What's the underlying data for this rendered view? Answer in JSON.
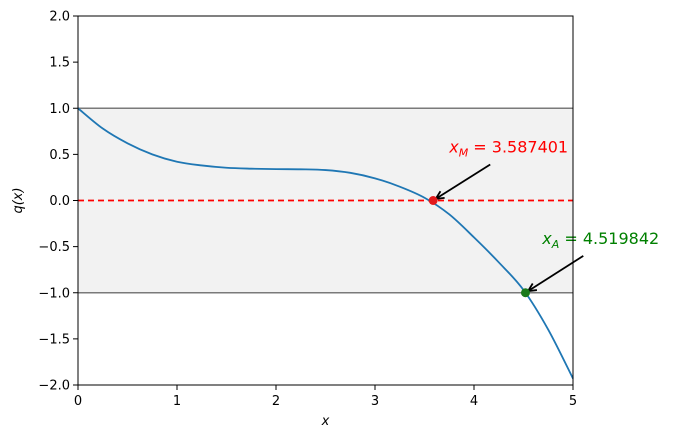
{
  "chart_data": {
    "type": "line",
    "xlabel": "x",
    "ylabel": "q(x)",
    "xlim": [
      0,
      5
    ],
    "ylim": [
      -2,
      2
    ],
    "x_ticks": [
      "0",
      "1",
      "2",
      "3",
      "4",
      "5"
    ],
    "y_ticks": [
      "2.0",
      "1.5",
      "1.0",
      "0.5",
      "0.0",
      "−0.5",
      "−1.0",
      "−1.5",
      "−2.0"
    ],
    "grid": false,
    "series": [
      {
        "color": "#1f77b4",
        "x": [
          0,
          0.25,
          0.5,
          0.75,
          1.0,
          1.25,
          1.5,
          1.75,
          2.0,
          2.25,
          2.5,
          2.75,
          3.0,
          3.25,
          3.5,
          3.75,
          4.0,
          4.25,
          4.5,
          4.75,
          5.0
        ],
        "y": [
          1.0,
          0.78,
          0.62,
          0.5,
          0.42,
          0.38,
          0.355,
          0.345,
          0.34,
          0.338,
          0.33,
          0.3,
          0.24,
          0.15,
          0.03,
          -0.15,
          -0.4,
          -0.67,
          -0.97,
          -1.4,
          -1.93
        ]
      }
    ],
    "band": {
      "y_from": -1.0,
      "y_to": 1.0,
      "color": "#f2f2f2",
      "edge_color": "#7a7a7a"
    },
    "hlines": [
      {
        "y": 0.0,
        "color": "#ff0000",
        "style": "dashed"
      }
    ],
    "annotations": [
      {
        "label_main": "x",
        "label_sub": "M",
        "label_rest": " = 3.587401",
        "x": 3.587401,
        "y": 0.0,
        "text_x": 3.78,
        "text_y": 0.52,
        "color": "#ff0000",
        "marker_color": "#e31a1c"
      },
      {
        "label_main": "x",
        "label_sub": "A",
        "label_rest": " = 4.519842",
        "x": 4.519842,
        "y": -1.0,
        "text_x": 4.72,
        "text_y": -0.47,
        "color": "#008000",
        "marker_color": "#1a7a1a"
      }
    ]
  }
}
